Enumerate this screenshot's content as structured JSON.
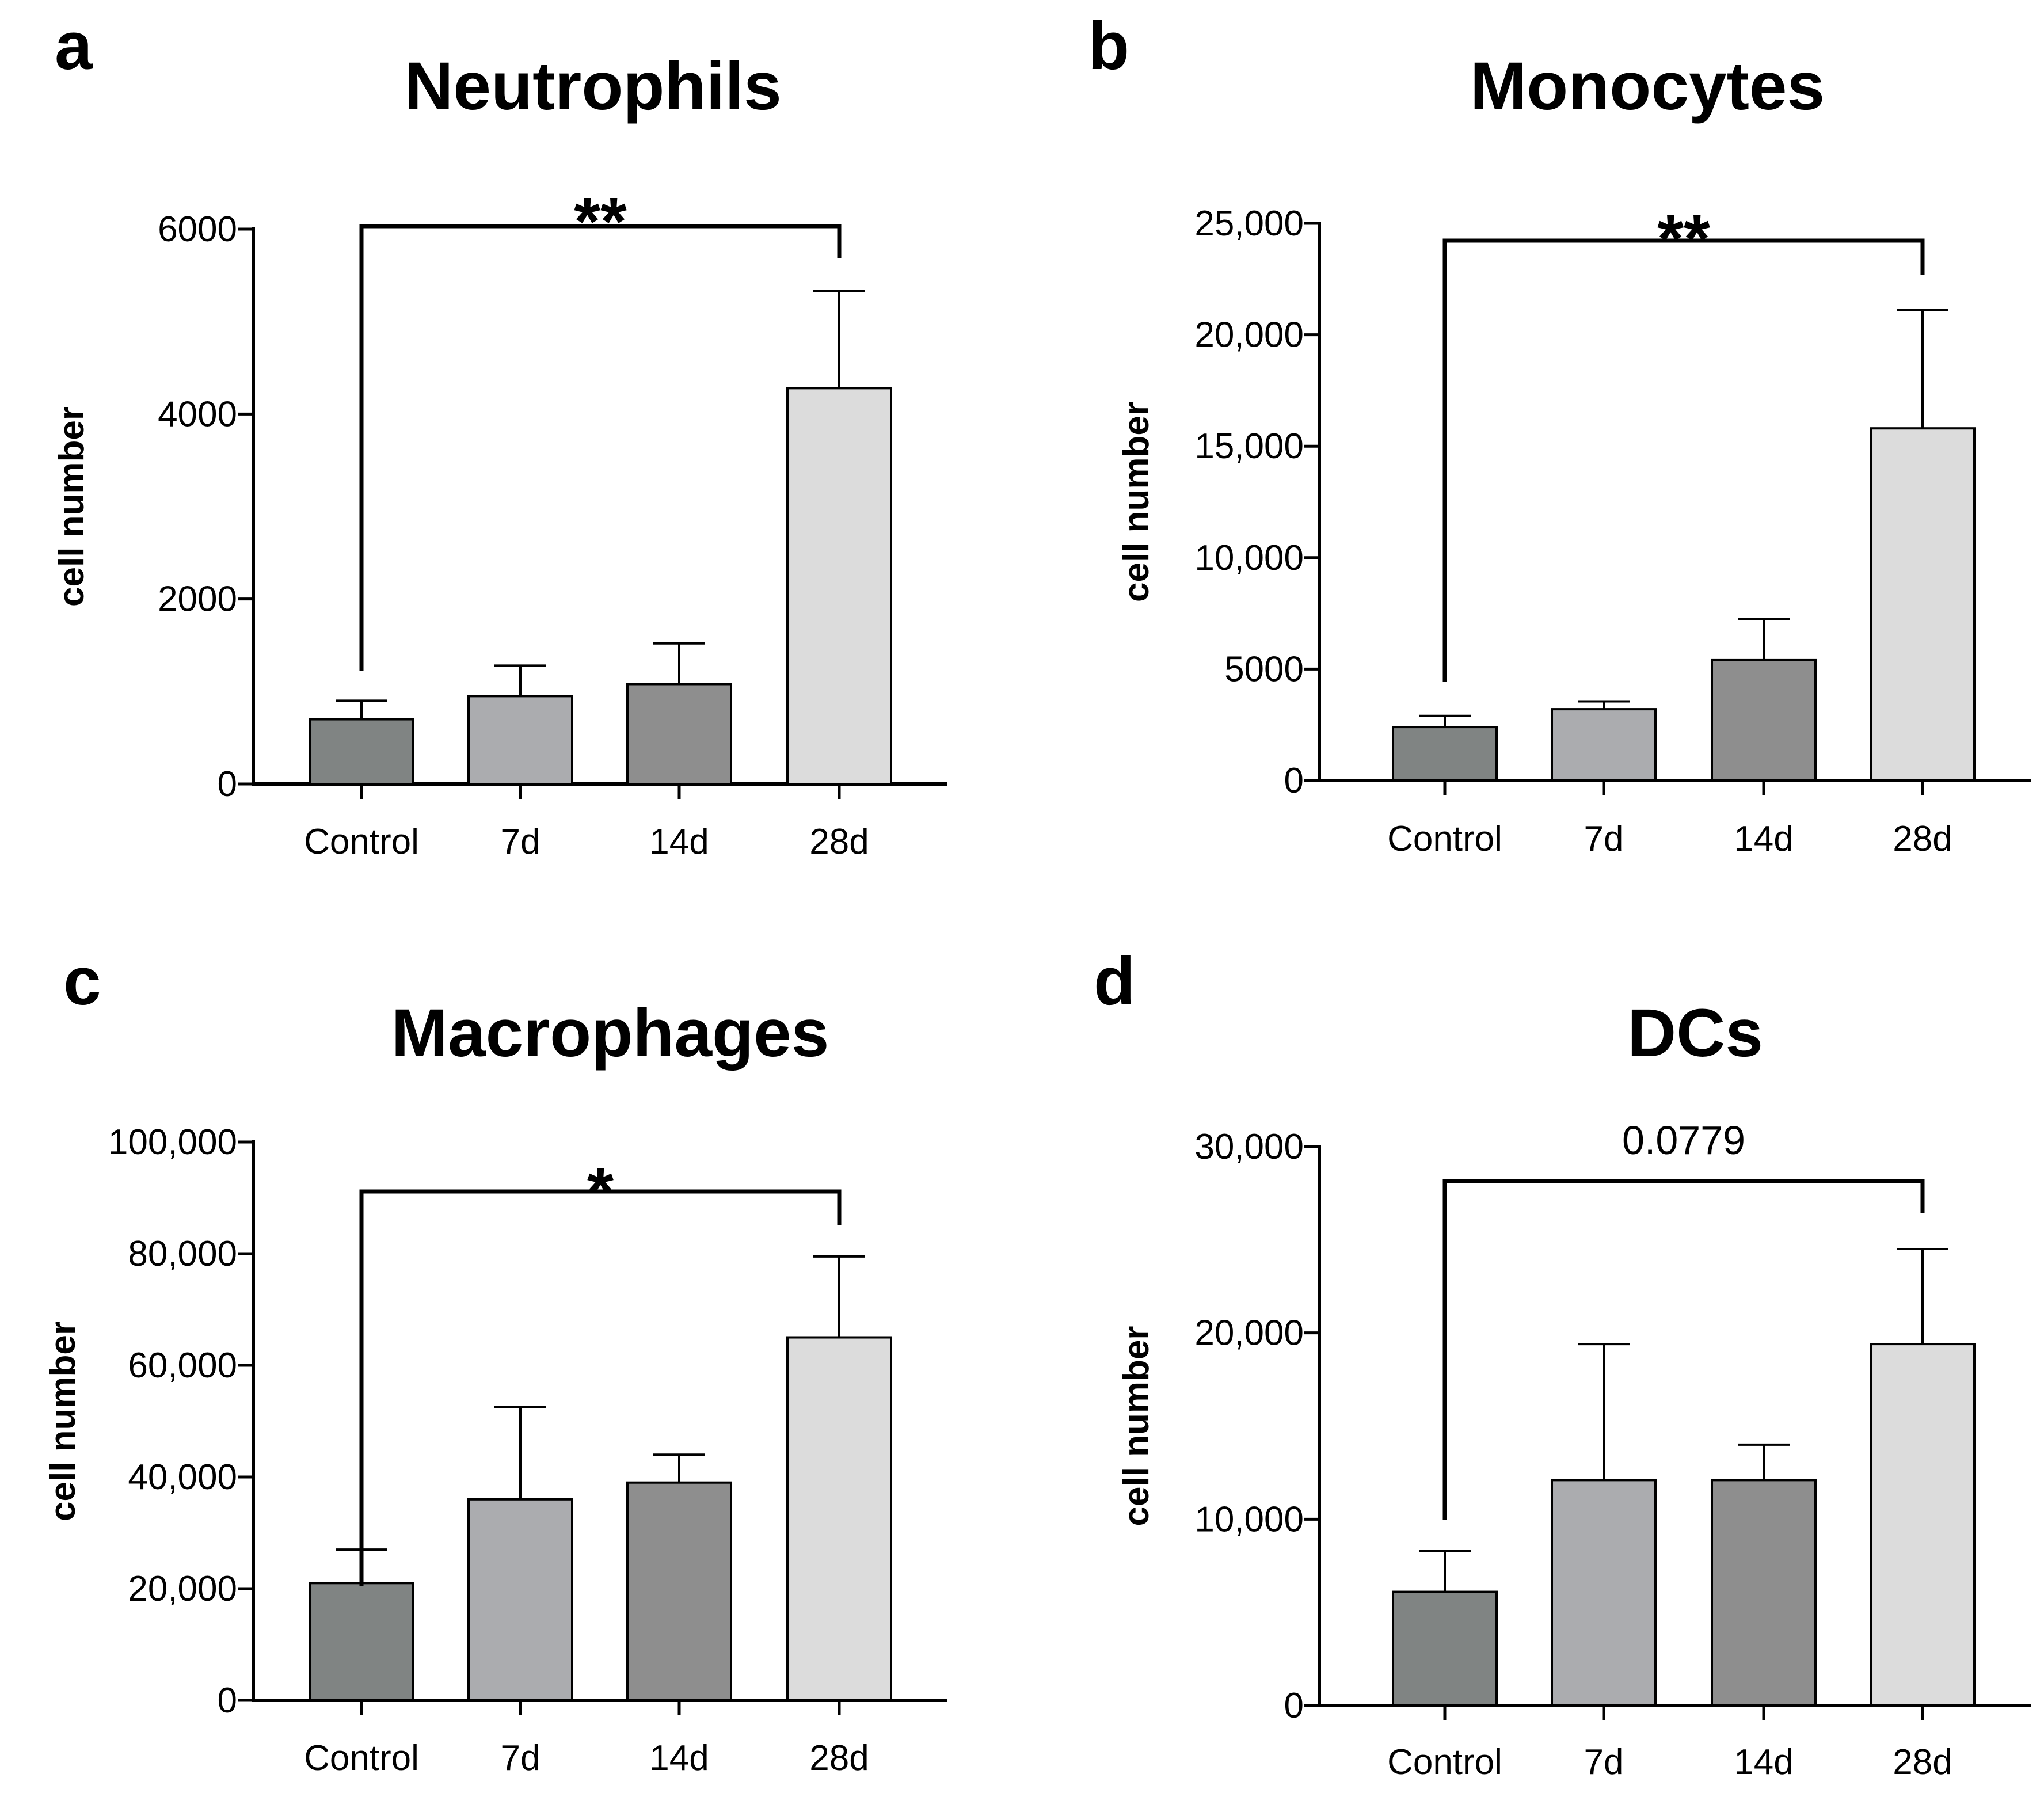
{
  "colors": {
    "control": "#808483",
    "d7": "#abacaf",
    "d14": "#8e8e8e",
    "d28": "#dcdcdc",
    "stroke": "#000000"
  },
  "chart_data": [
    {
      "type": "bar",
      "panel": "a",
      "title": "Neutrophils",
      "xlabel": "",
      "ylabel": "cell number",
      "categories": [
        "Control",
        "7d",
        "14d",
        "28d"
      ],
      "values": [
        700,
        950,
        1080,
        4280
      ],
      "errors": [
        200,
        330,
        440,
        1050
      ],
      "ylim": [
        0,
        6000
      ],
      "yticks": [
        0,
        2000,
        4000,
        6000
      ],
      "ytick_labels": [
        "0",
        "2000",
        "4000",
        "6000"
      ],
      "significance": {
        "from": "Control",
        "to": "28d",
        "label": "**",
        "type": "stars"
      }
    },
    {
      "type": "bar",
      "panel": "b",
      "title": "Monocytes",
      "xlabel": "",
      "ylabel": "cell number",
      "categories": [
        "Control",
        "7d",
        "14d",
        "28d"
      ],
      "values": [
        2400,
        3200,
        5400,
        15800
      ],
      "errors": [
        500,
        350,
        1850,
        5300
      ],
      "ylim": [
        0,
        25000
      ],
      "yticks": [
        0,
        5000,
        10000,
        15000,
        20000,
        25000
      ],
      "ytick_labels": [
        "0",
        "5000",
        "10,000",
        "15,000",
        "20,000",
        "25,000"
      ],
      "significance": {
        "from": "Control",
        "to": "28d",
        "label": "**",
        "type": "stars"
      }
    },
    {
      "type": "bar",
      "panel": "c",
      "title": "Macrophages",
      "xlabel": "",
      "ylabel": "cell number",
      "categories": [
        "Control",
        "7d",
        "14d",
        "28d"
      ],
      "values": [
        21000,
        36000,
        39000,
        65000
      ],
      "errors": [
        6000,
        16500,
        5000,
        14500
      ],
      "ylim": [
        0,
        100000
      ],
      "yticks": [
        0,
        20000,
        40000,
        60000,
        80000,
        100000
      ],
      "ytick_labels": [
        "0",
        "20,000",
        "40,000",
        "60,000",
        "80,000",
        "100,000"
      ],
      "significance": {
        "from": "Control",
        "to": "28d",
        "label": "*",
        "type": "stars"
      }
    },
    {
      "type": "bar",
      "panel": "d",
      "title": "DCs",
      "xlabel": "",
      "ylabel": "cell number",
      "categories": [
        "Control",
        "7d",
        "14d",
        "28d"
      ],
      "values": [
        6100,
        12100,
        12100,
        19400
      ],
      "errors": [
        2200,
        7300,
        1900,
        5100
      ],
      "ylim": [
        0,
        30000
      ],
      "yticks": [
        0,
        10000,
        20000,
        30000
      ],
      "ytick_labels": [
        "0",
        "10,000",
        "20,000",
        "30,000"
      ],
      "significance": {
        "from": "Control",
        "to": "28d",
        "label": "0.0779",
        "type": "pvalue"
      }
    }
  ]
}
